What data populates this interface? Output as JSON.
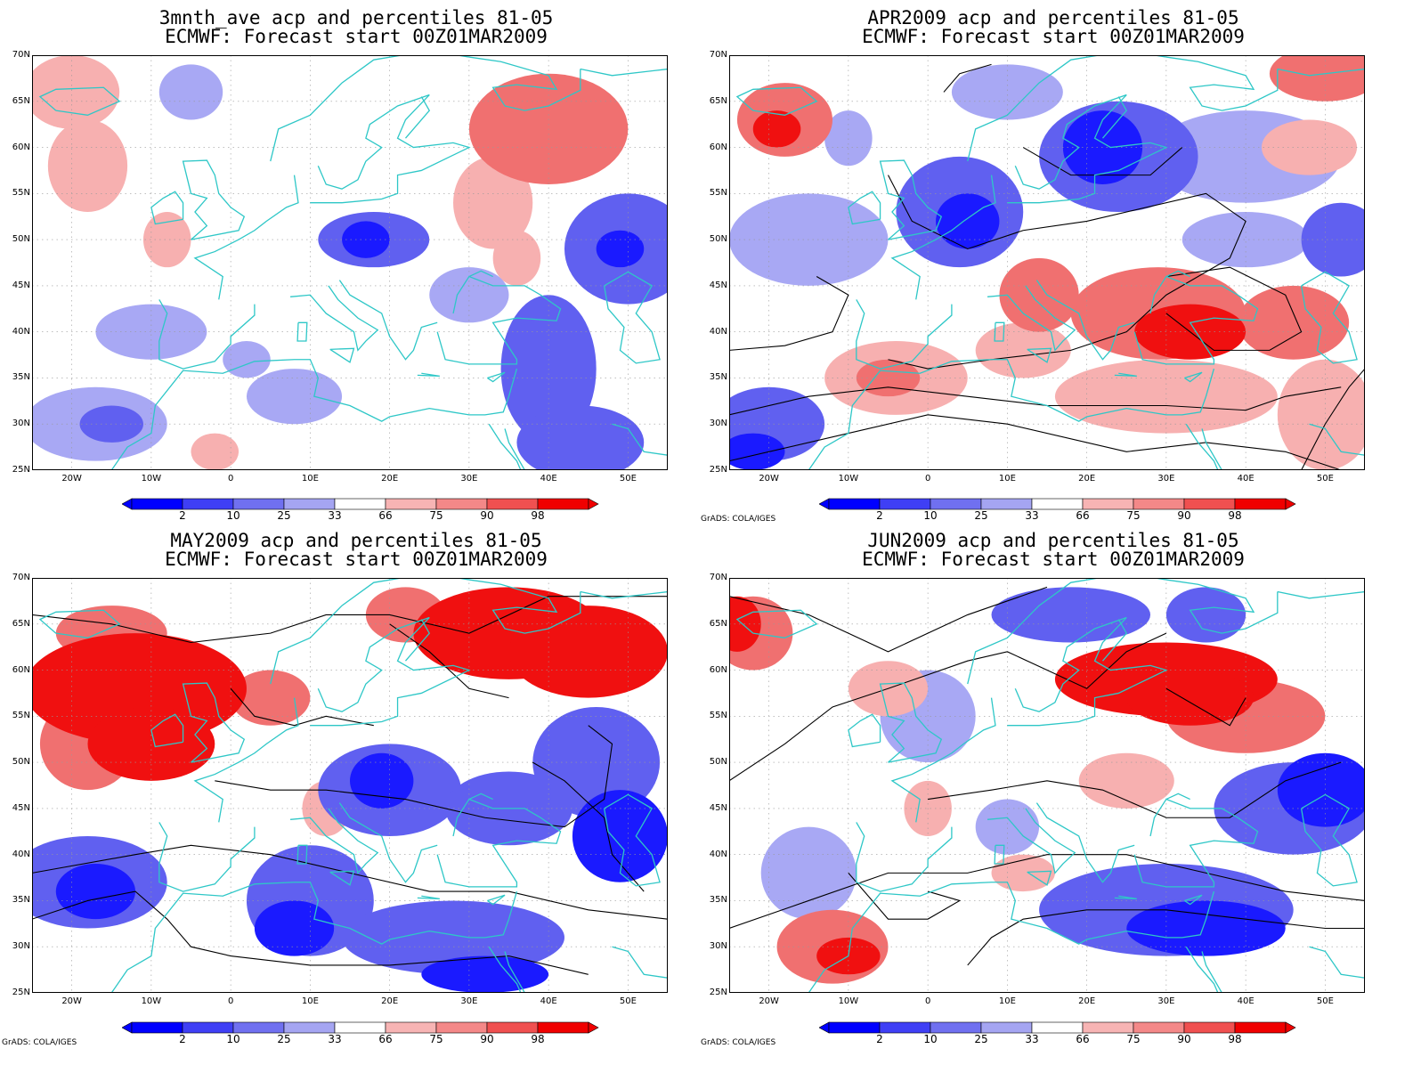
{
  "panels": [
    {
      "title_line1": "3mnth_ave acp and percentiles 81-05",
      "title_line2": "ECMWF: Forecast start 00Z01MAR2009",
      "credit": ""
    },
    {
      "title_line1": "APR2009 acp and percentiles 81-05",
      "title_line2": "ECMWF: Forecast start 00Z01MAR2009",
      "credit": "GrADS: COLA/IGES"
    },
    {
      "title_line1": "MAY2009 acp and percentiles 81-05",
      "title_line2": "ECMWF: Forecast start 00Z01MAR2009",
      "credit": "GrADS: COLA/IGES"
    },
    {
      "title_line1": "JUN2009 acp and percentiles 81-05",
      "title_line2": "ECMWF: Forecast start 00Z01MAR2009",
      "credit": "GrADS: COLA/IGES"
    }
  ],
  "lat_ticks": [
    "70N",
    "65N",
    "60N",
    "55N",
    "50N",
    "45N",
    "40N",
    "35N",
    "30N",
    "25N"
  ],
  "lon_ticks": [
    "20W",
    "10W",
    "0",
    "10E",
    "20E",
    "30E",
    "40E",
    "50E"
  ],
  "colorbar": {
    "labels": [
      "2",
      "10",
      "25",
      "33",
      "66",
      "75",
      "90",
      "98"
    ],
    "colors": [
      "#0000ff",
      "#3f3ff5",
      "#7070f0",
      "#a5a5f2",
      "#ffffff",
      "#f7b4b4",
      "#f48888",
      "#f05050",
      "#f00000"
    ]
  },
  "colors": {
    "coast": "#2ec7c7",
    "contour": "#000000",
    "deep_blue": "#1a1aff",
    "mid_blue": "#6060f0",
    "light_blue": "#a8a8f4",
    "light_red": "#f7b0b0",
    "mid_red": "#f07070",
    "deep_red": "#f01010"
  }
}
